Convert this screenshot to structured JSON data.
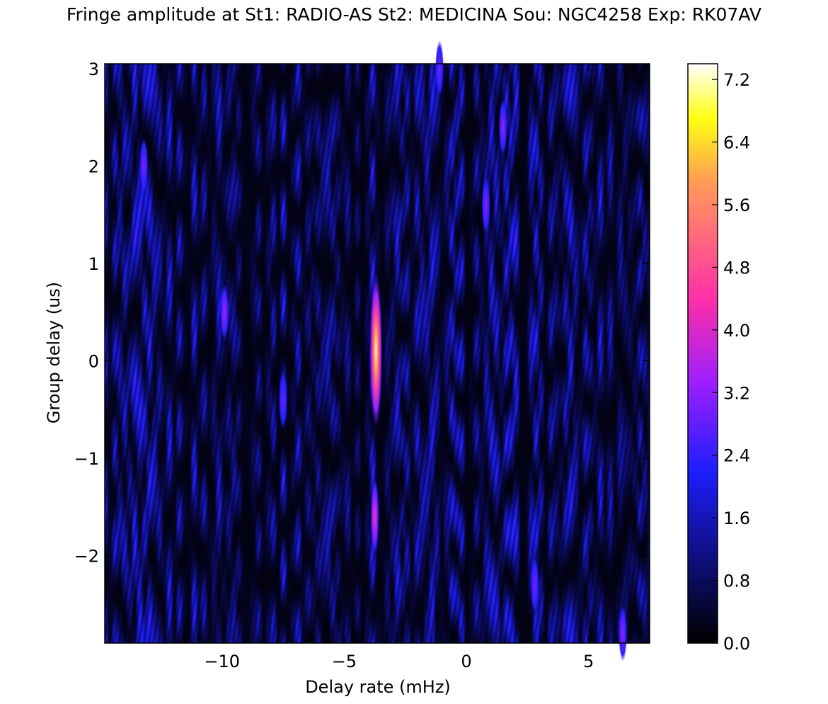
{
  "chart_data": {
    "type": "heatmap",
    "title": "Fringe amplitude at St1: RADIO-AS St2: MEDICINA Sou: NGC4258  Exp: RK07AV",
    "xlabel": "Delay rate (mHz)",
    "ylabel": "Group delay (us)",
    "xlim": [
      -14.8,
      7.5
    ],
    "ylim": [
      -2.9,
      3.05
    ],
    "x_ticks": [
      -10,
      -5,
      0,
      5
    ],
    "x_tick_labels": [
      "−10",
      "−5",
      "0",
      "5"
    ],
    "y_ticks": [
      -2,
      -1,
      0,
      1,
      2,
      3
    ],
    "y_tick_labels": [
      "−2",
      "−1",
      "0",
      "1",
      "2",
      "3"
    ],
    "colorbar": {
      "min": 0.0,
      "max": 7.4,
      "ticks": [
        0.0,
        0.8,
        1.6,
        2.4,
        3.2,
        4.0,
        4.8,
        5.6,
        6.4,
        7.2
      ],
      "tick_labels": [
        "0.0",
        "0.8",
        "1.6",
        "2.4",
        "3.2",
        "4.0",
        "4.8",
        "5.6",
        "6.4",
        "7.2"
      ],
      "colormap": [
        {
          "v": 0.0,
          "color": "#000000"
        },
        {
          "v": 2.2,
          "color": "#1e1eff"
        },
        {
          "v": 3.3,
          "color": "#9b1eff"
        },
        {
          "v": 4.4,
          "color": "#ff2fa8"
        },
        {
          "v": 5.9,
          "color": "#ff9d55"
        },
        {
          "v": 6.7,
          "color": "#ffff10"
        },
        {
          "v": 7.4,
          "color": "#ffffff"
        }
      ]
    },
    "peaks": [
      {
        "x": -3.7,
        "y": 0.1,
        "value": 7.3
      },
      {
        "x": -3.75,
        "y": -1.6,
        "value": 4.5
      },
      {
        "x": -9.9,
        "y": 0.5,
        "value": 3.5
      },
      {
        "x": 1.5,
        "y": 2.4,
        "value": 3.3
      },
      {
        "x": 0.8,
        "y": 1.6,
        "value": 3.2
      },
      {
        "x": -13.2,
        "y": 2.0,
        "value": 3.1
      },
      {
        "x": 2.8,
        "y": -2.3,
        "value": 3.0
      },
      {
        "x": -7.5,
        "y": -0.4,
        "value": 2.9
      },
      {
        "x": 6.4,
        "y": -2.8,
        "value": 3.3
      },
      {
        "x": -1.1,
        "y": 3.0,
        "value": 3.0
      }
    ]
  }
}
